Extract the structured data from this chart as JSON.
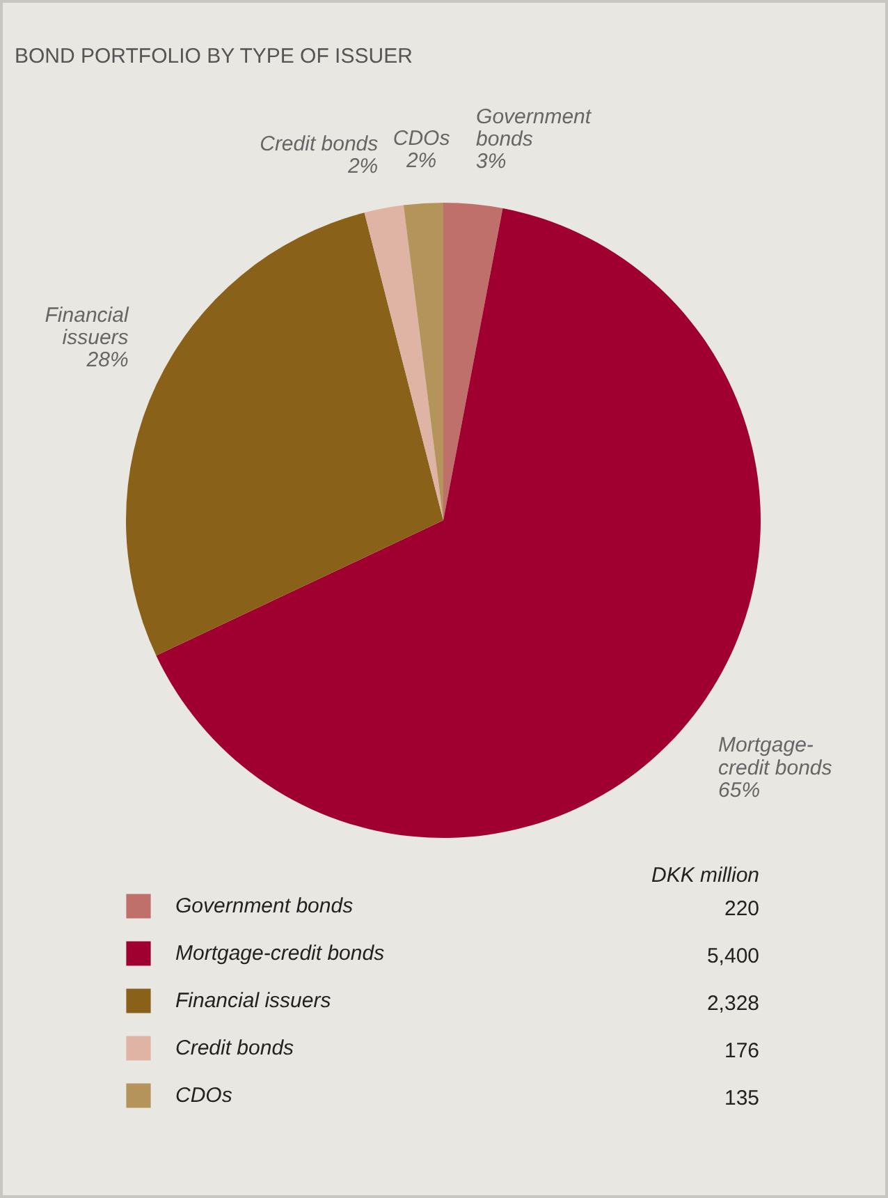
{
  "chart_data": {
    "type": "pie",
    "title": "BOND PORTFOLIO BY TYPE OF ISSUER",
    "categories": [
      "Government bonds",
      "Mortgage-credit bonds",
      "Financial issuers",
      "Credit bonds",
      "CDOs"
    ],
    "values": [
      3,
      65,
      28,
      2,
      2
    ],
    "colors": [
      "#c0706a",
      "#a00030",
      "#8a6119",
      "#e0b4a4",
      "#b4945a"
    ],
    "value_labels": [
      "3%",
      "65%",
      "28%",
      "2%",
      "2%"
    ],
    "legend": "bottom",
    "annotations": [
      "DKK million",
      "220",
      "5,400",
      "2,328",
      "176",
      "135"
    ]
  }
}
